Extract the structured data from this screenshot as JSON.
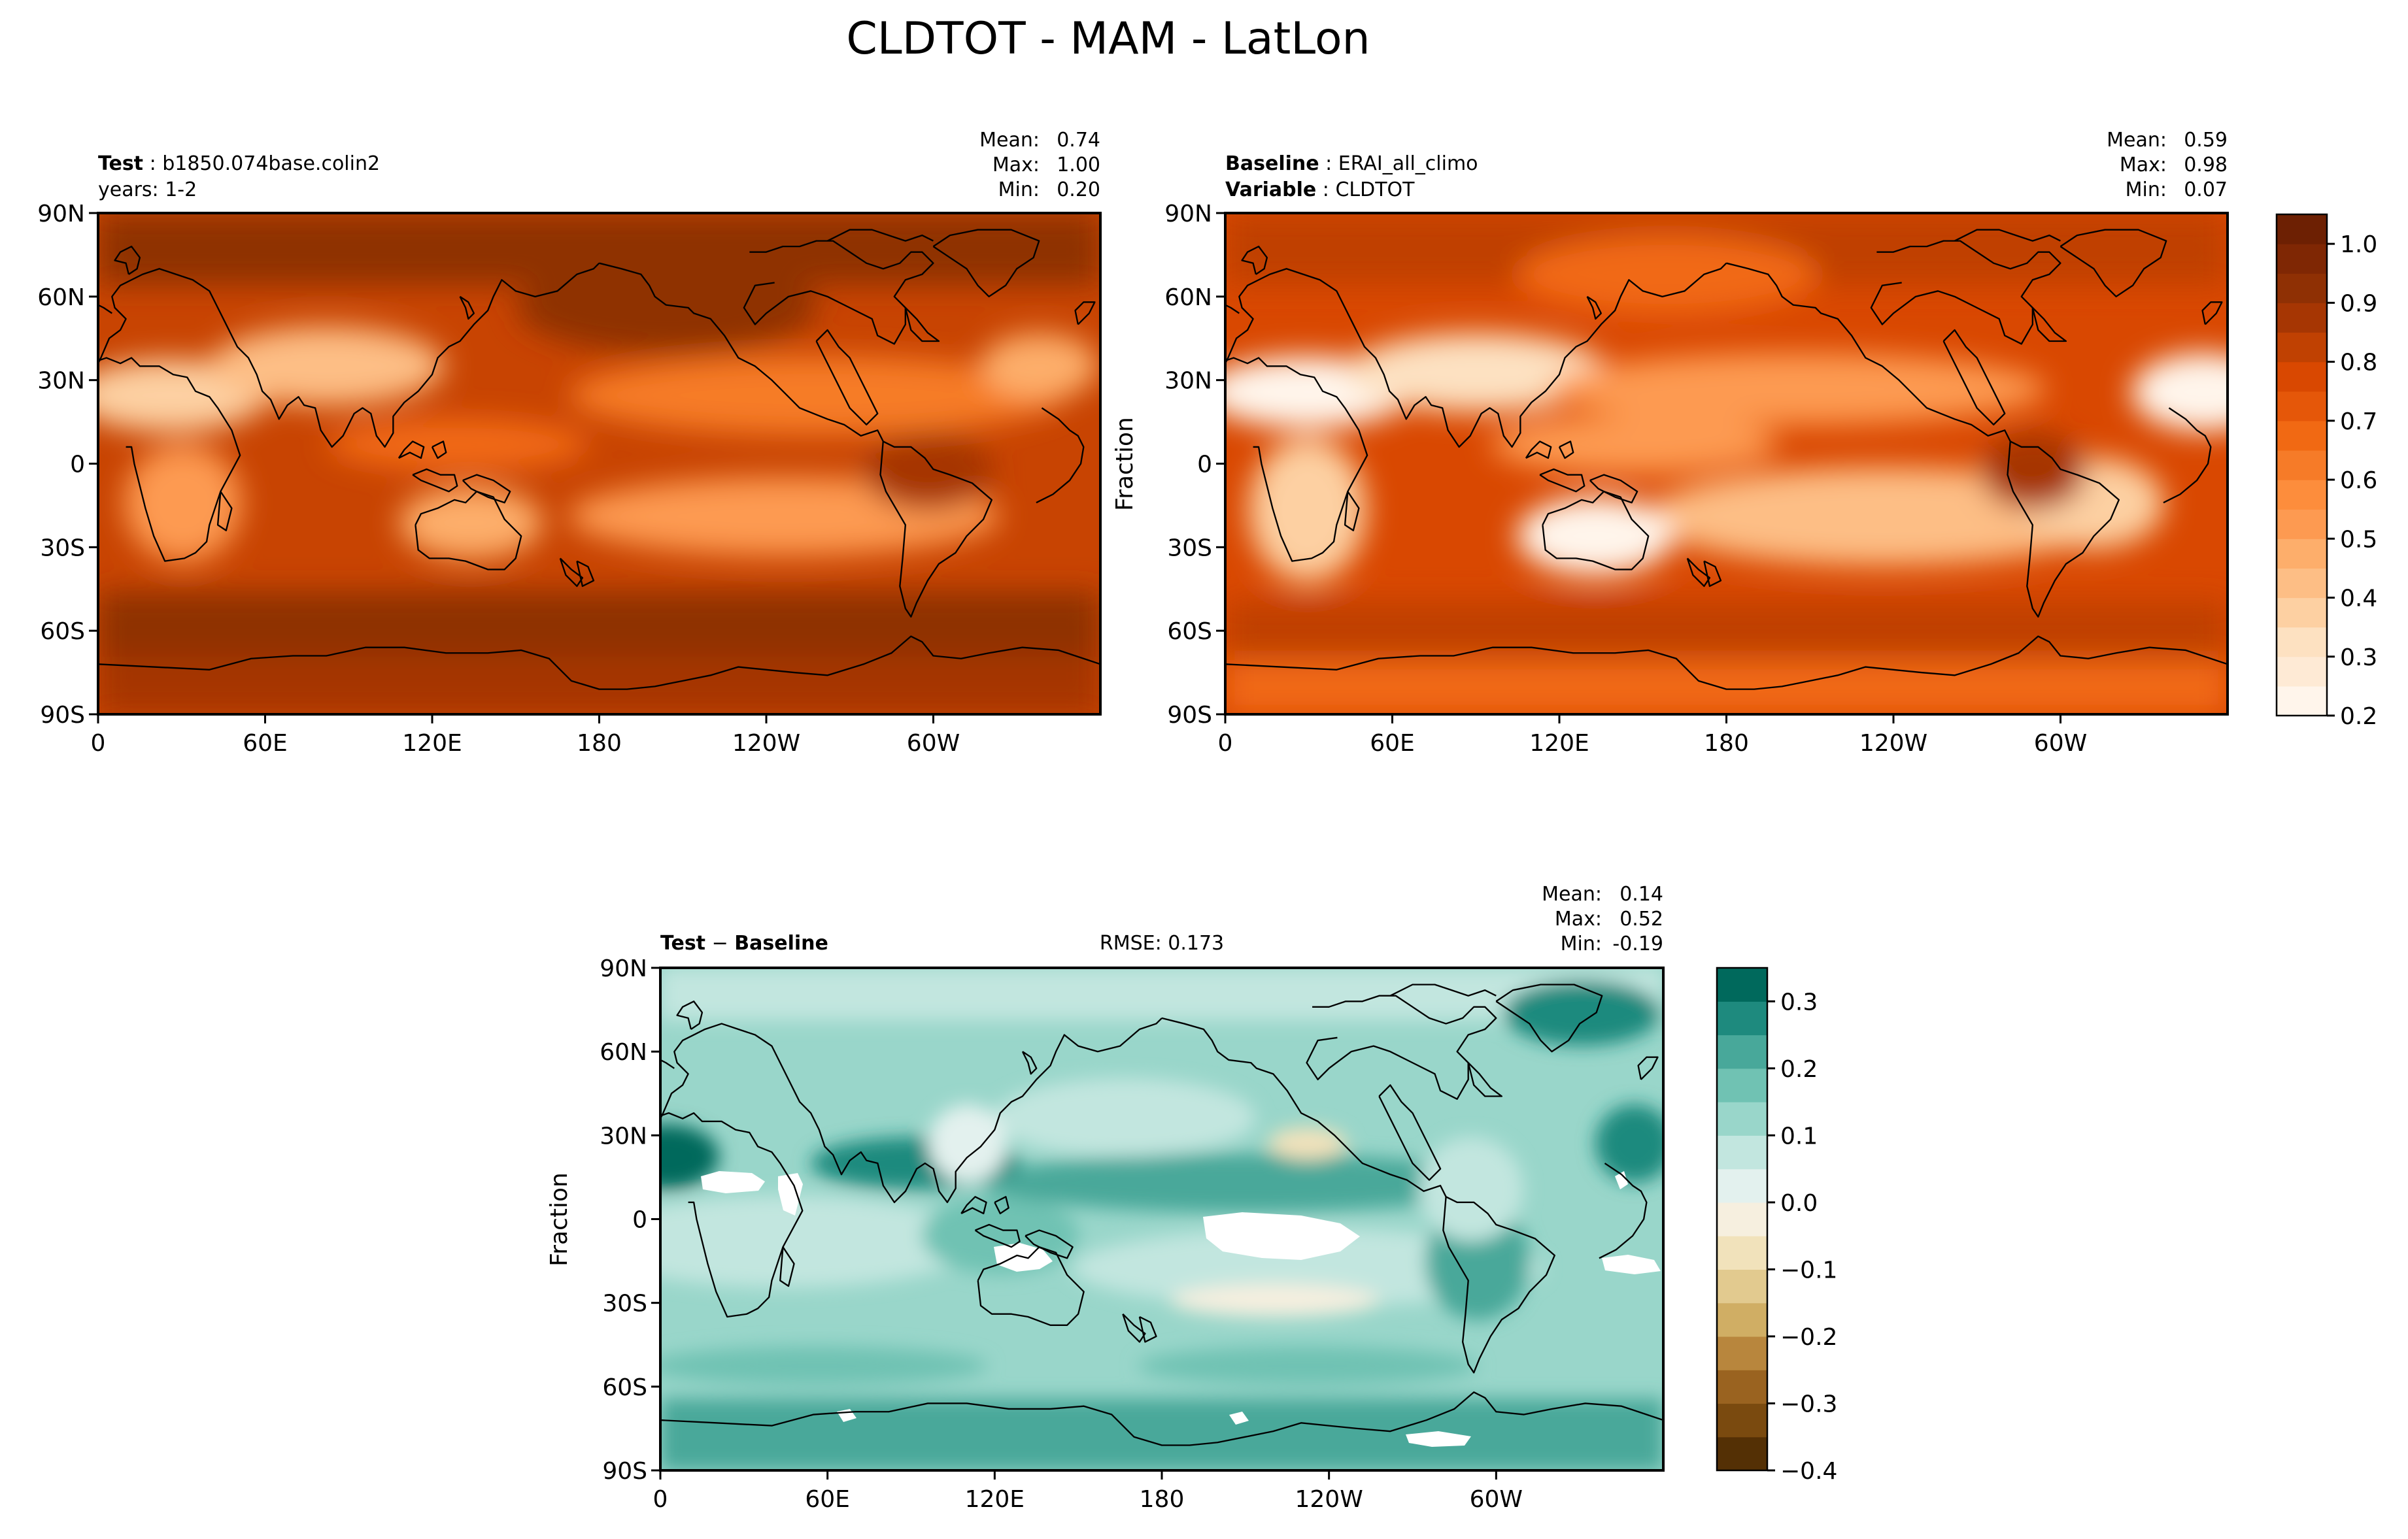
{
  "figure": {
    "suptitle": "CLDTOT - MAM - LatLon"
  },
  "chart_data": [
    {
      "type": "heatmap",
      "id": "test",
      "title_bold": "Test",
      "title_text": "b1850.074base.colin2",
      "subtitle": "years: 1-2",
      "stats": {
        "mean_label": "Mean:",
        "mean": "0.74",
        "max_label": "Max:",
        "max": "1.00",
        "min_label": "Min:",
        "min": "0.20"
      },
      "stat_values": {
        "mean": 0.74,
        "max": 1.0,
        "min": 0.2
      },
      "variable": "CLDTOT",
      "units_label": "",
      "xticks": [
        "0",
        "60E",
        "120E",
        "180",
        "120W",
        "60W"
      ],
      "yticks": [
        "90N",
        "60N",
        "30N",
        "0",
        "30S",
        "60S",
        "90S"
      ],
      "lat_range": [
        -90,
        90
      ],
      "lon_range": [
        0,
        360
      ]
    },
    {
      "type": "heatmap",
      "id": "baseline",
      "title_bold": "Baseline",
      "title_text": "ERAI_all_climo",
      "subtitle_bold": "Variable",
      "subtitle_text": "CLDTOT",
      "stats": {
        "mean_label": "Mean:",
        "mean": "0.59",
        "max_label": "Max:",
        "max": "0.98",
        "min_label": "Min:",
        "min": "0.07"
      },
      "stat_values": {
        "mean": 0.59,
        "max": 0.98,
        "min": 0.07
      },
      "units_label": "Fraction",
      "xticks": [
        "0",
        "60E",
        "120E",
        "180",
        "120W",
        "60W"
      ],
      "yticks": [
        "90N",
        "60N",
        "30N",
        "0",
        "30S",
        "60S",
        "90S"
      ],
      "colorbar": {
        "levels": [
          0.2,
          0.25,
          0.3,
          0.35,
          0.4,
          0.45,
          0.5,
          0.55,
          0.6,
          0.65,
          0.7,
          0.75,
          0.8,
          0.85,
          0.9,
          0.95,
          1.0,
          1.05
        ],
        "ticks": [
          "0.2",
          "0.3",
          "0.4",
          "0.5",
          "0.6",
          "0.7",
          "0.8",
          "0.9",
          "1.0"
        ],
        "tick_values": [
          0.2,
          0.3,
          0.4,
          0.5,
          0.6,
          0.7,
          0.8,
          0.9,
          1.0
        ],
        "colors": [
          "#fff5eb",
          "#feead5",
          "#fde1c1",
          "#fdd0a2",
          "#fdbe85",
          "#fdae6b",
          "#fd9a51",
          "#fd8d3c",
          "#f67b28",
          "#f16913",
          "#e55709",
          "#d94801",
          "#c04102",
          "#a63603",
          "#8f3004",
          "#7f2704",
          "#6d2003"
        ]
      }
    },
    {
      "type": "heatmap",
      "id": "diff",
      "title_bold": "Test",
      "title_op": "−",
      "title_bold2": "Baseline",
      "rmse": "RMSE: 0.173",
      "rmse_value": 0.173,
      "stats": {
        "mean_label": "Mean:",
        "mean": "0.14",
        "max_label": "Max:",
        "max": "0.52",
        "min_label": "Min:",
        "min": "-0.19"
      },
      "stat_values": {
        "mean": 0.14,
        "max": 0.52,
        "min": -0.19
      },
      "units_label": "Fraction",
      "xticks": [
        "0",
        "60E",
        "120E",
        "180",
        "120W",
        "60W"
      ],
      "yticks": [
        "90N",
        "60N",
        "30N",
        "0",
        "30S",
        "60S",
        "90S"
      ],
      "colorbar": {
        "levels": [
          -0.4,
          -0.35,
          -0.3,
          -0.25,
          -0.2,
          -0.15,
          -0.1,
          -0.05,
          0.0,
          0.05,
          0.1,
          0.15,
          0.2,
          0.25,
          0.3,
          0.35
        ],
        "ticks": [
          "0.3",
          "0.2",
          "0.1",
          "0.0",
          "−0.1",
          "−0.2",
          "−0.3",
          "−0.4"
        ],
        "tick_values": [
          0.3,
          0.2,
          0.1,
          0.0,
          -0.1,
          -0.2,
          -0.3,
          -0.4
        ],
        "colors": [
          "#543005",
          "#7a4a0f",
          "#9a6320",
          "#b8863d",
          "#d0ae64",
          "#e2ca8f",
          "#f1e2bb",
          "#f6efdf",
          "#e3f1ee",
          "#c2e6df",
          "#99d6ca",
          "#70c2b3",
          "#48a89a",
          "#1e8a7e",
          "#00695c"
        ]
      }
    }
  ]
}
